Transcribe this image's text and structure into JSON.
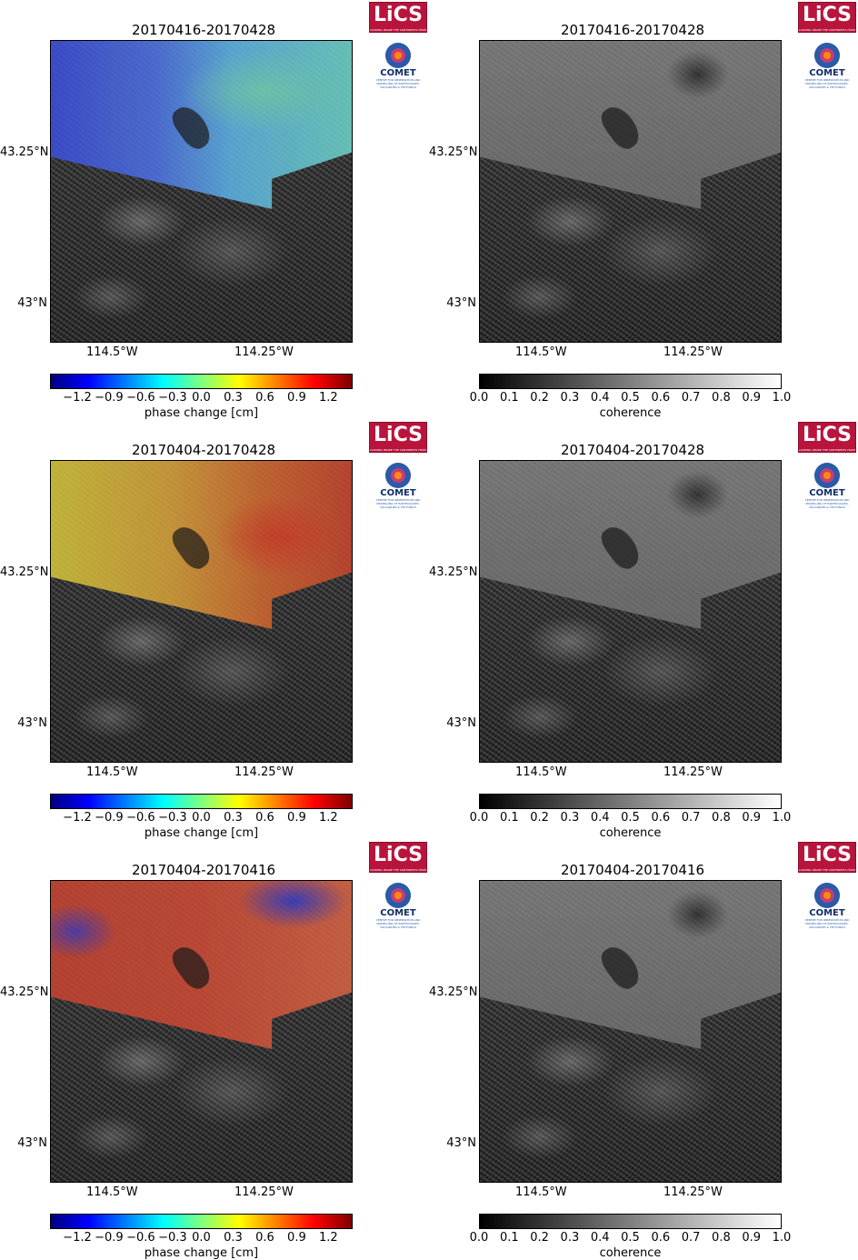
{
  "logos": {
    "lics": "LiCS",
    "lics_tagline": "LOOKING INSIDE THE CONTINENTS FROM SPACE",
    "comet": "COMET",
    "comet_tagline": "CENTRE FOR OBSERVATION AND MODELLING OF EARTHQUAKES, VOLCANOES & TECTONICS"
  },
  "axes": {
    "lat_top": "43.25°N",
    "lat_bottom": "43°N",
    "lon_left": "114.5°W",
    "lon_right": "114.25°W"
  },
  "colorbars": {
    "phase": {
      "label": "phase change [cm]",
      "ticks": [
        "−1.2",
        "−0.9",
        "−0.6",
        "−0.3",
        "0.0",
        "0.3",
        "0.6",
        "0.9",
        "1.2"
      ]
    },
    "coherence": {
      "label": "coherence",
      "ticks": [
        "0.0",
        "0.1",
        "0.2",
        "0.3",
        "0.4",
        "0.5",
        "0.6",
        "0.7",
        "0.8",
        "0.9",
        "1.0"
      ]
    }
  },
  "rows": [
    {
      "title": "20170416-20170428"
    },
    {
      "title": "20170404-20170428"
    },
    {
      "title": "20170404-20170416"
    }
  ]
}
